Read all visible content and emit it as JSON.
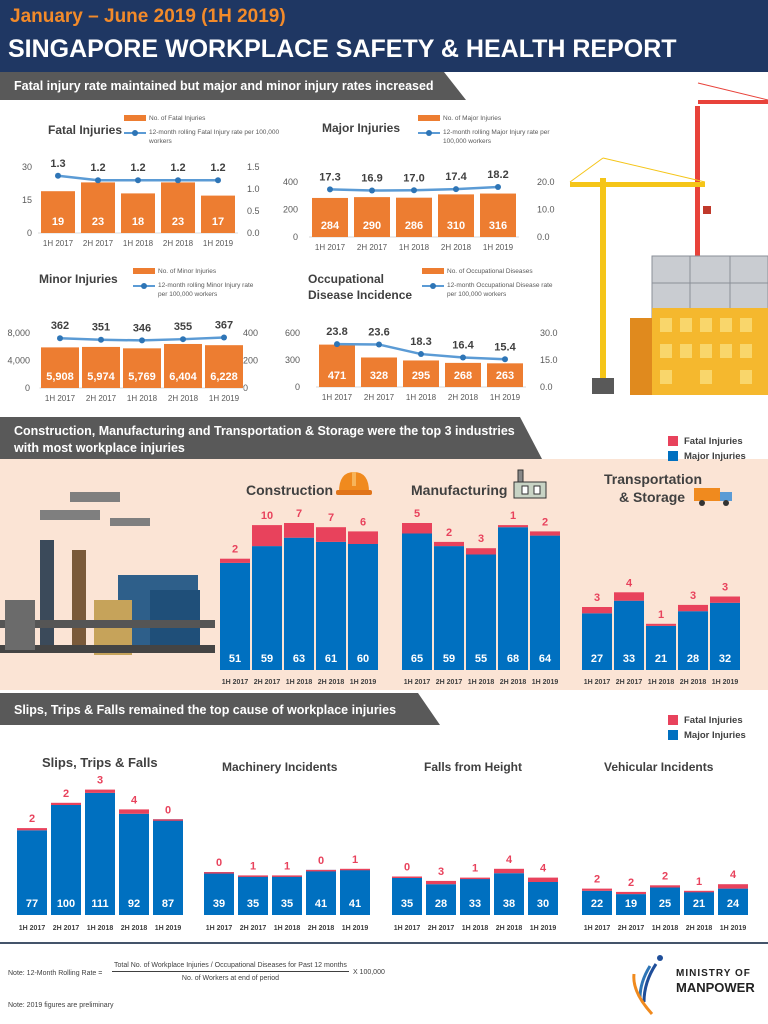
{
  "header": {
    "period": "January – June 2019 (1H 2019)",
    "title": "SINGAPORE WORKPLACE SAFETY & HEALTH REPORT"
  },
  "sections": [
    {
      "banner": "Fatal injury rate maintained but major and minor injury rates increased"
    },
    {
      "banner": "Construction, Manufacturing and Transportation & Storage were the top 3 industries with most workplace injuries"
    },
    {
      "banner": "Slips, Trips & Falls remained the top cause of workplace injuries"
    }
  ],
  "legend": {
    "fatal": "Fatal Injuries",
    "major": "Major Injuries"
  },
  "colors": {
    "header": "#1f3763",
    "accent": "#f28a2a",
    "bar": "#ed7d31",
    "line": "#5b9bd5",
    "major": "#0070c0",
    "fatal": "#e8425c",
    "banner": "#595959",
    "peach": "#fbe4d5"
  },
  "icons": [
    "hard-hat-icon",
    "factory-icon",
    "truck-icon",
    "crane-illustration",
    "factory-illustration",
    "ministry-of-manpower-logo"
  ],
  "chart_data": [
    {
      "type": "bar+line",
      "title": "Fatal Injuries",
      "categories": [
        "1H 2017",
        "2H 2017",
        "1H 2018",
        "2H 2018",
        "1H 2019"
      ],
      "bars": {
        "name": "No. of Fatal Injuries",
        "values": [
          19,
          23,
          18,
          23,
          17
        ],
        "labels": [
          "19",
          "23",
          "18",
          "23",
          "17"
        ]
      },
      "line": {
        "name": "12-month rolling Fatal Injury rate per 100,000 workers",
        "values": [
          1.3,
          1.2,
          1.2,
          1.2,
          1.2
        ],
        "labels": [
          "1.3",
          "1.2",
          "1.2",
          "1.2",
          "1.2"
        ]
      },
      "ylim": [
        0,
        30
      ],
      "y_ticks": [
        0,
        15,
        30
      ],
      "y_tick_labels": [
        "0",
        "15",
        "30"
      ],
      "y2lim": [
        0,
        1.5
      ],
      "y2_ticks": [
        0,
        0.5,
        1,
        1.5
      ],
      "y2_tick_labels": [
        "0.0",
        "0.5",
        "1.0",
        "1.5"
      ]
    },
    {
      "type": "bar+line",
      "title": "Major Injuries",
      "categories": [
        "1H 2017",
        "2H 2017",
        "1H 2018",
        "2H 2018",
        "1H 2019"
      ],
      "bars": {
        "name": "No. of Major Injuries",
        "values": [
          284,
          290,
          286,
          310,
          316
        ],
        "labels": [
          "284",
          "290",
          "286",
          "310",
          "316"
        ]
      },
      "line": {
        "name": "12-month rolling Major Injury rate per 100,000 workers",
        "values": [
          17.3,
          16.9,
          17.0,
          17.4,
          18.2
        ],
        "labels": [
          "17.3",
          "16.9",
          "17.0",
          "17.4",
          "18.2"
        ]
      },
      "ylim": [
        0,
        400
      ],
      "y_ticks": [
        0,
        200,
        400
      ],
      "y_tick_labels": [
        "0",
        "200",
        "400"
      ],
      "y2lim": [
        0,
        20
      ],
      "y2_ticks": [
        0,
        10,
        20
      ],
      "y2_tick_labels": [
        "0.0",
        "10.0",
        "20.0"
      ]
    },
    {
      "type": "bar+line",
      "title": "Minor Injuries",
      "categories": [
        "1H 2017",
        "2H 2017",
        "1H 2018",
        "2H 2018",
        "1H 2019"
      ],
      "bars": {
        "name": "No. of Minor Injuries",
        "values": [
          5908,
          5974,
          5769,
          6404,
          6228
        ],
        "labels": [
          "5,908",
          "5,974",
          "5,769",
          "6,404",
          "6,228"
        ]
      },
      "line": {
        "name": "12-month rolling Minor Injury rate per 100,000 workers",
        "values": [
          362,
          351,
          346,
          355,
          367
        ],
        "labels": [
          "362",
          "351",
          "346",
          "355",
          "367"
        ]
      },
      "ylim": [
        0,
        8000
      ],
      "y_ticks": [
        0,
        4000,
        8000
      ],
      "y_tick_labels": [
        "0",
        "4,000",
        "8,000"
      ],
      "y2lim": [
        0,
        400
      ],
      "y2_ticks": [
        0,
        200,
        400
      ],
      "y2_tick_labels": [
        "0",
        "200",
        "400"
      ]
    },
    {
      "type": "bar+line",
      "title": "Occupational Disease Incidence",
      "categories": [
        "1H 2017",
        "2H 2017",
        "1H 2018",
        "2H 2018",
        "1H 2019"
      ],
      "bars": {
        "name": "No. of Occupational Diseases",
        "values": [
          471,
          328,
          295,
          268,
          263
        ],
        "labels": [
          "471",
          "328",
          "295",
          "268",
          "263"
        ]
      },
      "line": {
        "name": "12-month Occupational Disease rate per 100,000 workers",
        "values": [
          23.8,
          23.6,
          18.3,
          16.4,
          15.4
        ],
        "labels": [
          "23.8",
          "23.6",
          "18.3",
          "16.4",
          "15.4"
        ]
      },
      "ylim": [
        0,
        600
      ],
      "y_ticks": [
        0,
        300,
        600
      ],
      "y_tick_labels": [
        "0",
        "300",
        "600"
      ],
      "y2lim": [
        0,
        30
      ],
      "y2_ticks": [
        0,
        15,
        30
      ],
      "y2_tick_labels": [
        "0.0",
        "15.0",
        "30.0"
      ]
    },
    {
      "type": "bar",
      "stacked": true,
      "title": "Construction",
      "categories": [
        "1H 2017",
        "2H 2017",
        "1H 2018",
        "2H 2018",
        "1H 2019"
      ],
      "series": [
        {
          "name": "Major Injuries",
          "values": [
            51,
            59,
            63,
            61,
            60
          ]
        },
        {
          "name": "Fatal Injuries",
          "values": [
            2,
            10,
            7,
            7,
            6
          ]
        }
      ]
    },
    {
      "type": "bar",
      "stacked": true,
      "title": "Manufacturing",
      "categories": [
        "1H 2017",
        "2H 2017",
        "1H 2018",
        "2H 2018",
        "1H 2019"
      ],
      "series": [
        {
          "name": "Major Injuries",
          "values": [
            65,
            59,
            55,
            68,
            64
          ]
        },
        {
          "name": "Fatal Injuries",
          "values": [
            5,
            2,
            3,
            1,
            2
          ]
        }
      ]
    },
    {
      "type": "bar",
      "stacked": true,
      "title": "Transportation & Storage",
      "categories": [
        "1H 2017",
        "2H 2017",
        "1H 2018",
        "2H 2018",
        "1H 2019"
      ],
      "series": [
        {
          "name": "Major Injuries",
          "values": [
            27,
            33,
            21,
            28,
            32
          ]
        },
        {
          "name": "Fatal Injuries",
          "values": [
            3,
            4,
            1,
            3,
            3
          ]
        }
      ]
    },
    {
      "type": "bar",
      "stacked": true,
      "title": "Slips, Trips & Falls",
      "categories": [
        "1H 2017",
        "2H 2017",
        "1H 2018",
        "2H 2018",
        "1H 2019"
      ],
      "series": [
        {
          "name": "Major Injuries",
          "values": [
            77,
            100,
            111,
            92,
            87
          ]
        },
        {
          "name": "Fatal Injuries",
          "values": [
            2,
            2,
            3,
            4,
            0
          ]
        }
      ]
    },
    {
      "type": "bar",
      "stacked": true,
      "title": "Machinery Incidents",
      "categories": [
        "1H 2017",
        "2H 2017",
        "1H 2018",
        "2H 2018",
        "1H 2019"
      ],
      "series": [
        {
          "name": "Major Injuries",
          "values": [
            39,
            35,
            35,
            41,
            41
          ]
        },
        {
          "name": "Fatal Injuries",
          "values": [
            0,
            1,
            1,
            0,
            1
          ]
        }
      ]
    },
    {
      "type": "bar",
      "stacked": true,
      "title": "Falls from Height",
      "categories": [
        "1H 2017",
        "2H 2017",
        "1H 2018",
        "2H 2018",
        "1H 2019"
      ],
      "series": [
        {
          "name": "Major Injuries",
          "values": [
            35,
            28,
            33,
            38,
            30
          ]
        },
        {
          "name": "Fatal Injuries",
          "values": [
            0,
            3,
            1,
            4,
            4
          ]
        }
      ]
    },
    {
      "type": "bar",
      "stacked": true,
      "title": "Vehicular Incidents",
      "categories": [
        "1H 2017",
        "2H 2017",
        "1H 2018",
        "2H 2018",
        "1H 2019"
      ],
      "series": [
        {
          "name": "Major Injuries",
          "values": [
            22,
            19,
            25,
            21,
            24
          ]
        },
        {
          "name": "Fatal Injuries",
          "values": [
            2,
            2,
            2,
            1,
            4
          ]
        }
      ]
    }
  ],
  "footer": {
    "rate_label": "Note: 12-Month Rolling Rate =",
    "numerator": "Total No. of Workplace Injuries / Occupational Diseases for Past 12 months",
    "denominator": "No. of Workers at end of period",
    "multiplier": "X 100,000",
    "preliminary": "Note: 2019 figures are preliminary",
    "logo_line1": "MINISTRY OF",
    "logo_line2": "MANPOWER"
  }
}
